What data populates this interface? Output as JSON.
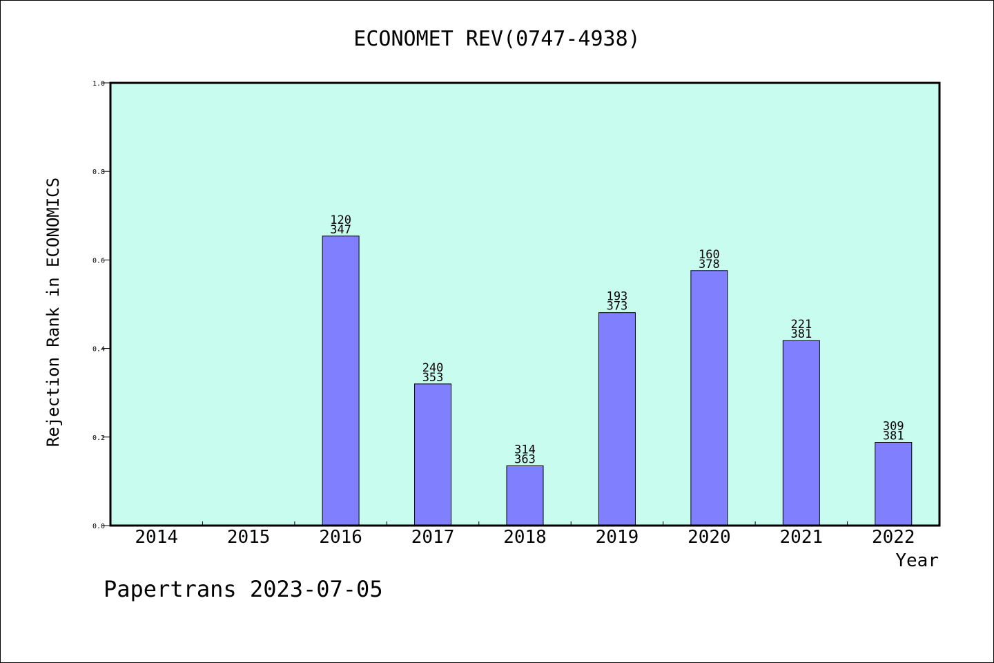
{
  "chart_data": {
    "type": "bar",
    "title": "ECONOMET REV(0747-4938)",
    "xlabel": "Year",
    "ylabel": "Rejection Rank in ECONOMICS",
    "categories": [
      "2014",
      "2015",
      "2016",
      "2017",
      "2018",
      "2019",
      "2020",
      "2021",
      "2022"
    ],
    "values": [
      null,
      null,
      0.654,
      0.32,
      0.135,
      0.481,
      0.576,
      0.418,
      0.188
    ],
    "label_top": [
      null,
      null,
      "120",
      "240",
      "314",
      "193",
      "160",
      "221",
      "309"
    ],
    "label_bottom": [
      null,
      null,
      "347",
      "353",
      "363",
      "373",
      "378",
      "381",
      "381"
    ],
    "ylim": [
      0,
      1.0
    ],
    "yticks": [
      "0.0",
      "0.2",
      "0.4",
      "0.6",
      "0.8",
      "1.0"
    ],
    "grid": false,
    "legend": "none",
    "colors": {
      "plot_bg": "#c8fcee",
      "bar": "#8080ff",
      "axis": "#000000"
    }
  },
  "footer": {
    "watermark": "Papertrans 2023-07-05"
  }
}
